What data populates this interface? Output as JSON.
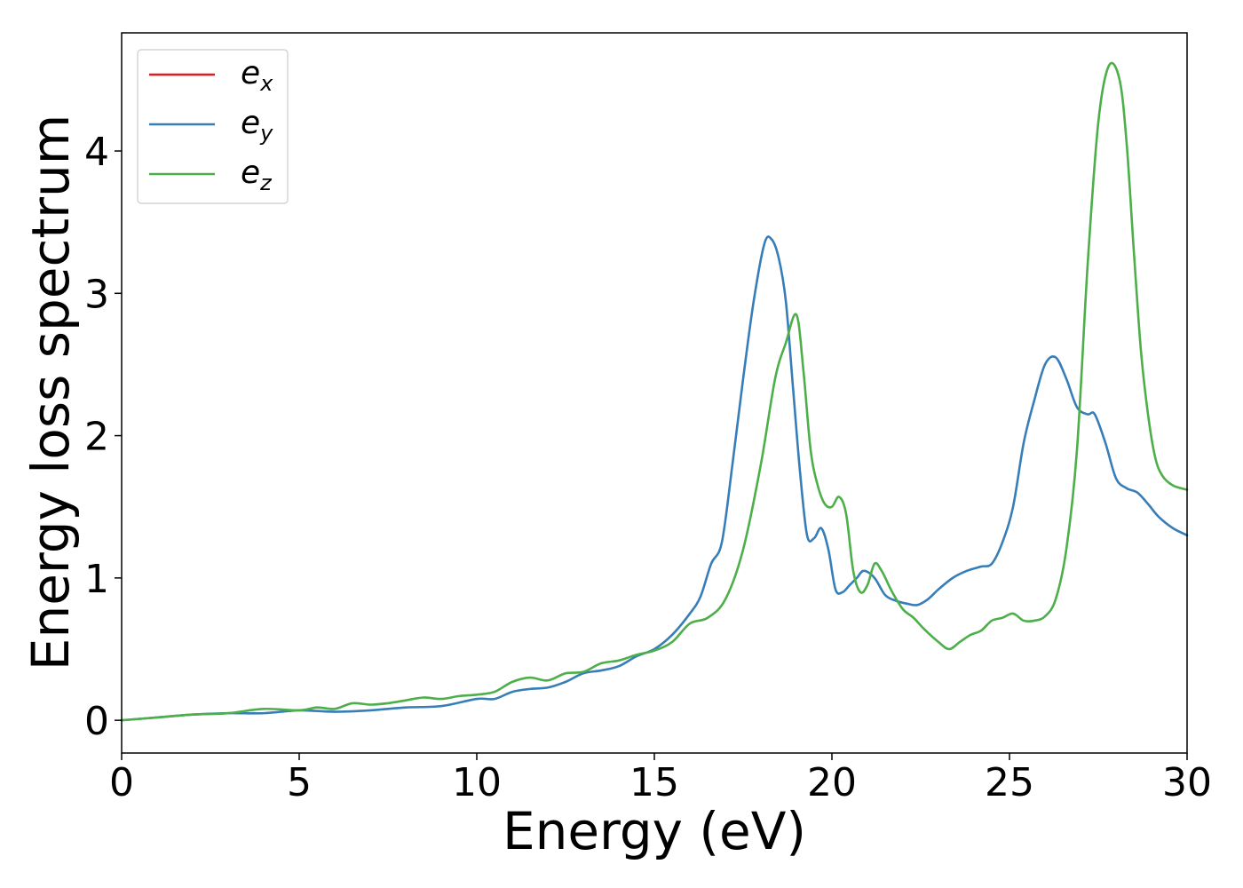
{
  "chart_data": {
    "type": "line",
    "title": "",
    "xlabel": "Energy (eV)",
    "ylabel": "Energy loss spectrum",
    "xlim": [
      0,
      30
    ],
    "ylim": [
      -0.23,
      4.83
    ],
    "xticks": [
      0,
      5,
      10,
      15,
      20,
      25,
      30
    ],
    "yticks": [
      0,
      1,
      2,
      3,
      4
    ],
    "grid": false,
    "legend_position": "top-left",
    "series": [
      {
        "name": "e",
        "subscript": "x",
        "color": "#e41a1c",
        "x": [
          0,
          1,
          2,
          3,
          4,
          5,
          6,
          7,
          8,
          9,
          10,
          10.5,
          11,
          11.5,
          12,
          12.5,
          13,
          13.5,
          14,
          14.5,
          15,
          15.5,
          16,
          16.3,
          16.6,
          16.9,
          17.2,
          17.5,
          17.8,
          18.1,
          18.3,
          18.5,
          18.7,
          18.9,
          19.1,
          19.3,
          19.5,
          19.7,
          19.9,
          20.1,
          20.3,
          20.5,
          20.7,
          20.9,
          21.2,
          21.5,
          21.8,
          22.1,
          22.4,
          22.7,
          23,
          23.4,
          23.8,
          24.2,
          24.5,
          24.8,
          25.1,
          25.4,
          25.7,
          26,
          26.3,
          26.6,
          26.9,
          27.2,
          27.4,
          27.7,
          28,
          28.3,
          28.6,
          28.9,
          29.2,
          29.6,
          30
        ],
        "values": [
          0,
          0.02,
          0.04,
          0.05,
          0.05,
          0.07,
          0.06,
          0.07,
          0.09,
          0.1,
          0.15,
          0.15,
          0.2,
          0.22,
          0.23,
          0.27,
          0.33,
          0.35,
          0.38,
          0.45,
          0.5,
          0.6,
          0.75,
          0.87,
          1.1,
          1.25,
          1.8,
          2.4,
          2.95,
          3.35,
          3.38,
          3.25,
          2.95,
          2.35,
          1.75,
          1.3,
          1.28,
          1.35,
          1.2,
          0.92,
          0.9,
          0.95,
          1.0,
          1.05,
          1.0,
          0.88,
          0.84,
          0.82,
          0.81,
          0.85,
          0.92,
          1.0,
          1.05,
          1.08,
          1.1,
          1.25,
          1.5,
          1.95,
          2.25,
          2.5,
          2.55,
          2.4,
          2.2,
          2.15,
          2.15,
          1.95,
          1.7,
          1.63,
          1.6,
          1.52,
          1.43,
          1.35,
          1.3
        ],
        "draw_values": false
      },
      {
        "name": "e",
        "subscript": "y",
        "color": "#377eb8",
        "x": [
          0,
          1,
          2,
          3,
          4,
          5,
          6,
          7,
          8,
          9,
          10,
          10.5,
          11,
          11.5,
          12,
          12.5,
          13,
          13.5,
          14,
          14.5,
          15,
          15.5,
          16,
          16.3,
          16.6,
          16.9,
          17.2,
          17.5,
          17.8,
          18.1,
          18.3,
          18.5,
          18.7,
          18.9,
          19.1,
          19.3,
          19.5,
          19.7,
          19.9,
          20.1,
          20.3,
          20.5,
          20.7,
          20.9,
          21.2,
          21.5,
          21.8,
          22.1,
          22.4,
          22.7,
          23,
          23.4,
          23.8,
          24.2,
          24.5,
          24.8,
          25.1,
          25.4,
          25.7,
          26,
          26.3,
          26.6,
          26.9,
          27.2,
          27.4,
          27.7,
          28,
          28.3,
          28.6,
          28.9,
          29.2,
          29.6,
          30
        ],
        "values": [
          0,
          0.02,
          0.04,
          0.05,
          0.05,
          0.07,
          0.06,
          0.07,
          0.09,
          0.1,
          0.15,
          0.15,
          0.2,
          0.22,
          0.23,
          0.27,
          0.33,
          0.35,
          0.38,
          0.45,
          0.5,
          0.6,
          0.75,
          0.87,
          1.1,
          1.25,
          1.8,
          2.4,
          2.95,
          3.35,
          3.38,
          3.25,
          2.95,
          2.35,
          1.75,
          1.3,
          1.28,
          1.35,
          1.2,
          0.92,
          0.9,
          0.95,
          1.0,
          1.05,
          1.0,
          0.88,
          0.84,
          0.82,
          0.81,
          0.85,
          0.92,
          1.0,
          1.05,
          1.08,
          1.1,
          1.25,
          1.5,
          1.95,
          2.25,
          2.5,
          2.55,
          2.4,
          2.2,
          2.15,
          2.15,
          1.95,
          1.7,
          1.63,
          1.6,
          1.52,
          1.43,
          1.35,
          1.3
        ]
      },
      {
        "name": "e",
        "subscript": "z",
        "color": "#4daf4a",
        "x": [
          0,
          1,
          2,
          3,
          4,
          5,
          5.5,
          6,
          6.5,
          7,
          7.5,
          8,
          8.5,
          9,
          9.5,
          10,
          10.5,
          11,
          11.5,
          12,
          12.5,
          13,
          13.5,
          14,
          14.5,
          15,
          15.5,
          16,
          16.5,
          17,
          17.5,
          18,
          18.4,
          18.7,
          19,
          19.2,
          19.4,
          19.6,
          19.8,
          20,
          20.2,
          20.4,
          20.6,
          20.8,
          21,
          21.2,
          21.4,
          21.7,
          22,
          22.3,
          22.6,
          23,
          23.3,
          23.6,
          23.9,
          24.2,
          24.5,
          24.8,
          25.1,
          25.4,
          25.7,
          26,
          26.3,
          26.6,
          26.9,
          27.2,
          27.5,
          27.8,
          28.1,
          28.3,
          28.5,
          28.7,
          28.9,
          29.1,
          29.3,
          29.6,
          30
        ],
        "values": [
          0,
          0.02,
          0.04,
          0.05,
          0.08,
          0.07,
          0.09,
          0.08,
          0.12,
          0.11,
          0.12,
          0.14,
          0.16,
          0.15,
          0.17,
          0.18,
          0.2,
          0.27,
          0.3,
          0.28,
          0.33,
          0.34,
          0.4,
          0.42,
          0.46,
          0.49,
          0.55,
          0.68,
          0.72,
          0.85,
          1.2,
          1.8,
          2.4,
          2.65,
          2.85,
          2.45,
          1.9,
          1.65,
          1.52,
          1.5,
          1.57,
          1.45,
          1.05,
          0.9,
          0.95,
          1.1,
          1.05,
          0.9,
          0.78,
          0.72,
          0.64,
          0.55,
          0.5,
          0.55,
          0.6,
          0.63,
          0.7,
          0.72,
          0.75,
          0.7,
          0.7,
          0.73,
          0.85,
          1.2,
          1.9,
          3.2,
          4.2,
          4.6,
          4.5,
          4.05,
          3.3,
          2.6,
          2.15,
          1.85,
          1.72,
          1.65,
          1.62
        ]
      }
    ]
  }
}
